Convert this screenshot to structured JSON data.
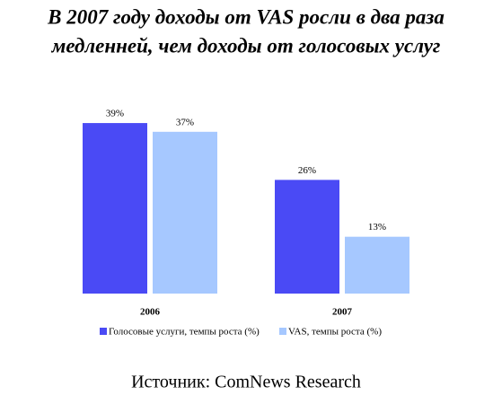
{
  "chart_data": {
    "type": "bar",
    "title": [
      "В 2007 году доходы от VAS росли в два раза",
      "медленней, чем доходы от голосовых услуг"
    ],
    "categories": [
      "2006",
      "2007"
    ],
    "series": [
      {
        "name": "Голосовые услуги, темпы роста (%)",
        "color": "#4a4af5",
        "values": [
          39,
          26
        ],
        "value_labels": [
          "39%",
          "26%"
        ]
      },
      {
        "name": "VAS, темпы роста (%)",
        "color": "#a6c8ff",
        "values": [
          37,
          13
        ],
        "value_labels": [
          "37%",
          "13%"
        ]
      }
    ],
    "source": "Источник: ComNews Research"
  }
}
